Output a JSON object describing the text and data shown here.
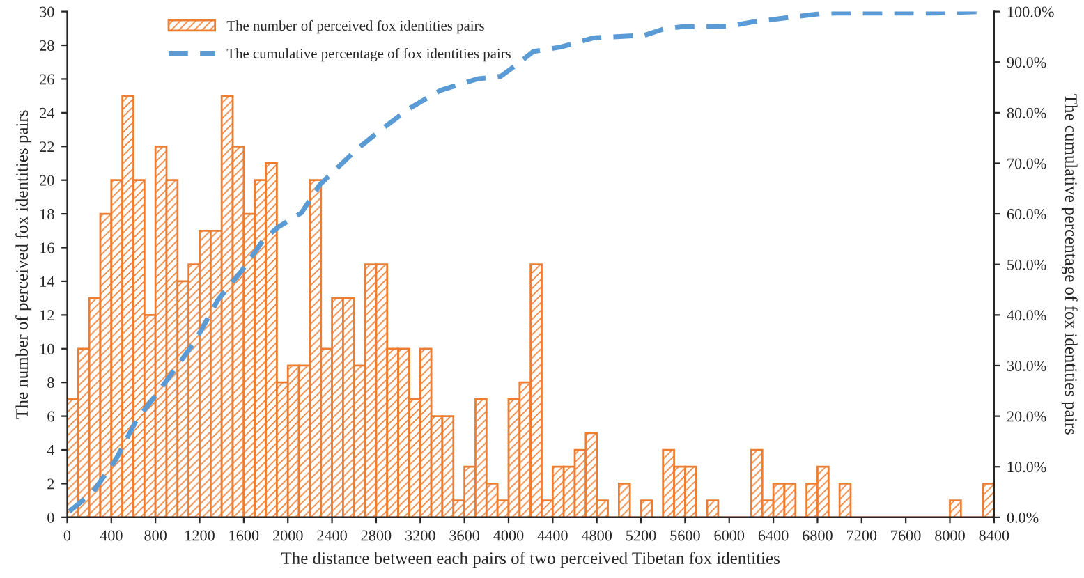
{
  "chart_data": {
    "type": "histogram",
    "xlabel": "The distance between each pairs of two perceived Tibetan fox identities",
    "ylabel": "The number of perceived fox identities pairs",
    "y2label": "The cumulative percentage of fox identities pairs",
    "bins": [
      0,
      100,
      200,
      300,
      400,
      500,
      600,
      700,
      800,
      900,
      1000,
      1100,
      1200,
      1300,
      1400,
      1500,
      1600,
      1700,
      1800,
      1900,
      2000,
      2100,
      2200,
      2300,
      2400,
      2500,
      2600,
      2700,
      2800,
      2900,
      3000,
      3100,
      3200,
      3300,
      3400,
      3500,
      3600,
      3700,
      3800,
      3900,
      4000,
      4100,
      4200,
      4300,
      4400,
      4500,
      4600,
      4700,
      4800,
      4900,
      5000,
      5100,
      5200,
      5300,
      5400,
      5500,
      5600,
      5700,
      5800,
      5900,
      6000,
      6100,
      6200,
      6300,
      6400,
      6500,
      6600,
      6700,
      6800,
      6900,
      7000,
      7100,
      7200,
      7300,
      7400,
      7500,
      7600,
      7700,
      7800,
      7900,
      8000,
      8100,
      8200,
      8300,
      8400
    ],
    "series": [
      {
        "name": "The number of perceived fox identities pairs",
        "color": "#ed7d31",
        "values": [
          7,
          10,
          13,
          18,
          20,
          25,
          20,
          12,
          22,
          20,
          14,
          15,
          17,
          17,
          25,
          22,
          18,
          20,
          21,
          8,
          9,
          9,
          20,
          10,
          13,
          13,
          9,
          15,
          15,
          10,
          10,
          7,
          10,
          6,
          6,
          1,
          3,
          7,
          2,
          1,
          7,
          8,
          15,
          1,
          3,
          3,
          4,
          5,
          1,
          0,
          2,
          0,
          1,
          0,
          4,
          3,
          3,
          0,
          1,
          0,
          0,
          0,
          4,
          1,
          2,
          2,
          0,
          2,
          3,
          0,
          2,
          0,
          0,
          0,
          0,
          0,
          0,
          0,
          0,
          0,
          1,
          0,
          0,
          2
        ]
      },
      {
        "name": "The cumulative percentage of fox identities pairs",
        "type": "line",
        "axis": "y2",
        "color": "#5b9bd5",
        "line_style": "dashed",
        "x": [
          20,
          230,
          440,
          630,
          780,
          967,
          1156,
          1366,
          1576,
          1787,
          1913,
          2123,
          2291,
          2627,
          2837,
          3090,
          3380,
          3720,
          3930,
          4073,
          4224,
          4477,
          4770,
          5233,
          5400,
          5570,
          6000,
          6200,
          6530,
          6830,
          6958,
          7881,
          8260
        ],
        "values": [
          1.2,
          4.9,
          11.4,
          19.3,
          23.5,
          29,
          34.7,
          43,
          48.6,
          55.1,
          57.4,
          60.2,
          65.8,
          72.8,
          76.5,
          80.7,
          84.4,
          86.7,
          87.2,
          89.5,
          92.1,
          93,
          94.8,
          95.3,
          96.5,
          97,
          97.1,
          97.9,
          98.8,
          99.6,
          99.7,
          99.7,
          100
        ]
      }
    ],
    "xlim": [
      0,
      8400
    ],
    "xticks": [
      0,
      400,
      800,
      1200,
      1600,
      2000,
      2400,
      2800,
      3200,
      3600,
      4000,
      4400,
      4800,
      5200,
      5600,
      6000,
      6400,
      6800,
      7200,
      7600,
      8000,
      8400
    ],
    "ylim": [
      0,
      30
    ],
    "yticks": [
      0,
      2,
      4,
      6,
      8,
      10,
      12,
      14,
      16,
      18,
      20,
      22,
      24,
      26,
      28,
      30
    ],
    "y2lim": [
      0,
      100
    ],
    "y2ticks": [
      {
        "value": 0,
        "label": "0.0%"
      },
      {
        "value": 10,
        "label": "10.0%"
      },
      {
        "value": 20,
        "label": "20.0%"
      },
      {
        "value": 30,
        "label": "30.0%"
      },
      {
        "value": 40,
        "label": "40.0%"
      },
      {
        "value": 50,
        "label": "50.0%"
      },
      {
        "value": 60,
        "label": "60.0%"
      },
      {
        "value": 70,
        "label": "70.0%"
      },
      {
        "value": 80,
        "label": "80.0%"
      },
      {
        "value": 90,
        "label": "90.0%"
      },
      {
        "value": 100,
        "label": "100.0%"
      }
    ],
    "legend": "top left",
    "grid": false
  }
}
